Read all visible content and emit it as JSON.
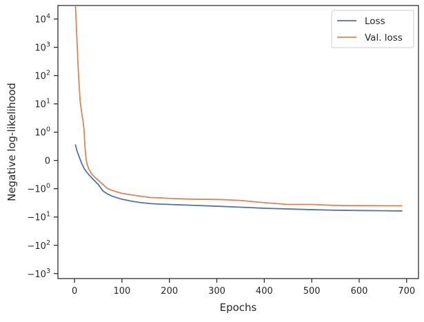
{
  "chart_data": {
    "type": "line",
    "title": "",
    "xlabel": "Epochs",
    "ylabel": "Negative log-likelihood",
    "xlim": [
      -35,
      725
    ],
    "ylim": [
      -1500,
      30000
    ],
    "yscale": "symlog",
    "ylinthresh": 1,
    "grid": false,
    "legend_position": "top-right",
    "x_ticks": [
      0,
      100,
      200,
      300,
      400,
      500,
      600,
      700
    ],
    "y_ticks": [
      {
        "value": 10000,
        "base": "10",
        "exp": "4"
      },
      {
        "value": 1000,
        "base": "10",
        "exp": "3"
      },
      {
        "value": 100,
        "base": "10",
        "exp": "2"
      },
      {
        "value": 10,
        "base": "10",
        "exp": "1"
      },
      {
        "value": 1,
        "base": "10",
        "exp": "0"
      },
      {
        "value": 0,
        "base": "0",
        "exp": ""
      },
      {
        "value": -1,
        "base": "−10",
        "exp": "0"
      },
      {
        "value": -10,
        "base": "−10",
        "exp": "1"
      },
      {
        "value": -100,
        "base": "−10",
        "exp": "2"
      },
      {
        "value": -1000,
        "base": "−10",
        "exp": "3"
      }
    ],
    "series": [
      {
        "name": "Loss",
        "color": "#4c72b0",
        "x": [
          2,
          5,
          10,
          15,
          20,
          25,
          30,
          40,
          50,
          60,
          70,
          80,
          90,
          100,
          120,
          140,
          160,
          180,
          200,
          250,
          300,
          350,
          400,
          450,
          500,
          550,
          600,
          650,
          690
        ],
        "y": [
          0.55,
          0.35,
          0.12,
          -0.1,
          -0.28,
          -0.4,
          -0.5,
          -0.68,
          -0.85,
          -1.2,
          -1.55,
          -1.85,
          -2.1,
          -2.35,
          -2.75,
          -3.1,
          -3.35,
          -3.5,
          -3.6,
          -3.85,
          -4.15,
          -4.5,
          -4.9,
          -5.2,
          -5.5,
          -5.75,
          -5.9,
          -6.0,
          -6.1
        ]
      },
      {
        "name": "Val. loss",
        "color": "#dd8452",
        "x": [
          2,
          5,
          8,
          10,
          12,
          15,
          18,
          20,
          22,
          24,
          26,
          30,
          35,
          40,
          50,
          60,
          70,
          80,
          90,
          100,
          120,
          140,
          160,
          180,
          200,
          250,
          300,
          320,
          350,
          400,
          450,
          500,
          550,
          600,
          650,
          690
        ],
        "y": [
          30000,
          2000,
          150,
          40,
          12,
          5,
          2.5,
          1.2,
          0.5,
          0.1,
          -0.1,
          -0.3,
          -0.45,
          -0.55,
          -0.7,
          -0.85,
          -1.0,
          -1.15,
          -1.3,
          -1.45,
          -1.65,
          -1.85,
          -2.05,
          -2.1,
          -2.2,
          -2.35,
          -2.4,
          -2.45,
          -2.6,
          -3.1,
          -3.6,
          -3.6,
          -3.9,
          -3.95,
          -4.0,
          -4.0
        ]
      }
    ]
  }
}
